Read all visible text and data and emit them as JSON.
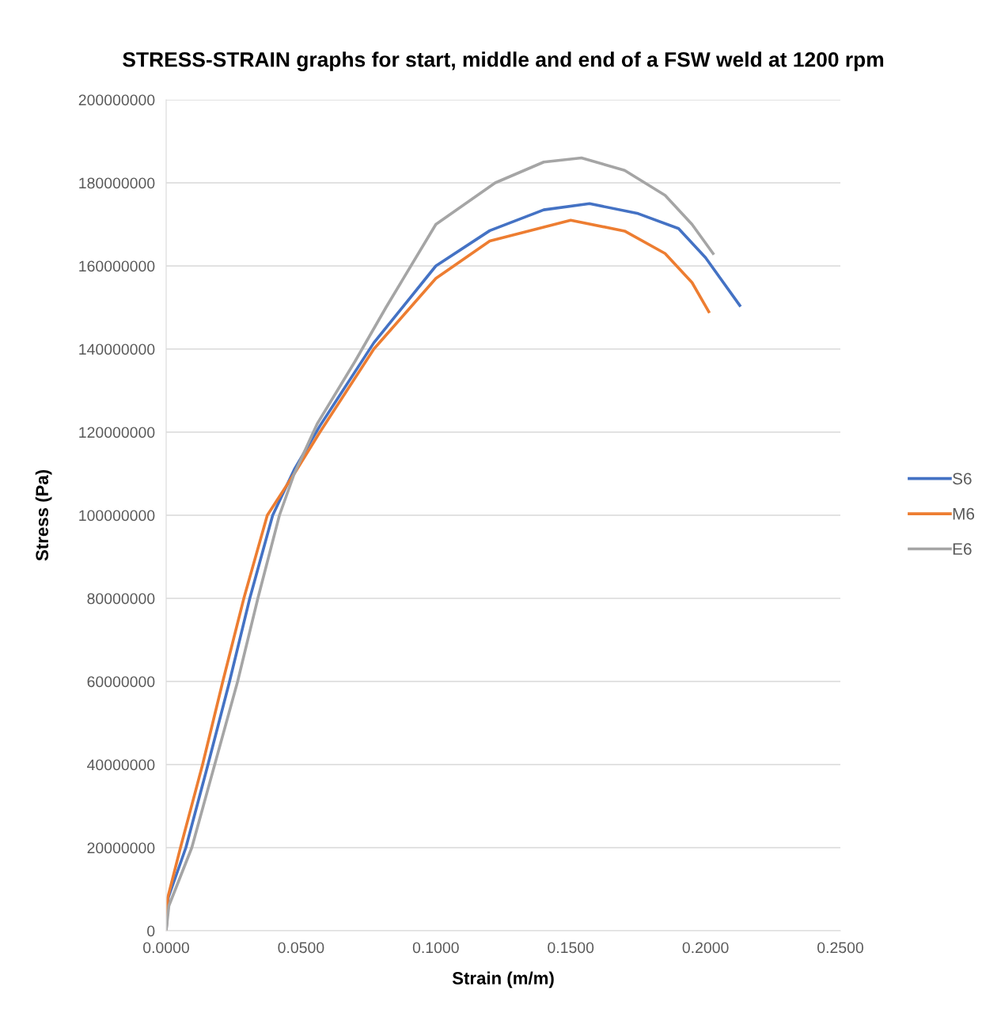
{
  "chart_data": {
    "type": "line",
    "title": "STRESS-STRAIN graphs for start, middle and end of a FSW weld at 1200 rpm",
    "xlabel": "Strain (m/m)",
    "ylabel": "Stress (Pa)",
    "xlim": [
      0,
      0.25
    ],
    "xticks": [
      {
        "value": 0,
        "label": "0.0000"
      },
      {
        "value": 0.05,
        "label": "0.0500"
      },
      {
        "value": 0.1,
        "label": "0.1000"
      },
      {
        "value": 0.15,
        "label": "0.1500"
      },
      {
        "value": 0.2,
        "label": "0.2000"
      },
      {
        "value": 0.25,
        "label": "0.2500"
      }
    ],
    "ylim": [
      0,
      200000000
    ],
    "yticks": [
      0,
      20000000,
      40000000,
      60000000,
      80000000,
      100000000,
      120000000,
      140000000,
      160000000,
      180000000,
      200000000
    ],
    "grid": "y",
    "legend": "right",
    "marker": "none",
    "line_style": "solid",
    "series": [
      {
        "name": "S6",
        "color": "#4472c4",
        "x": [
          0,
          0.0008,
          0.0073,
          0.0155,
          0.0235,
          0.031,
          0.0395,
          0.0475,
          0.057,
          0.077,
          0.1,
          0.12,
          0.14,
          0.157,
          0.175,
          0.19,
          0.2,
          0.2127
        ],
        "values": [
          0,
          8000000,
          20000000,
          40000000,
          60000000,
          80000000,
          100000000,
          111000000,
          121500000,
          141500000,
          160000000,
          168500000,
          173500000,
          175000000,
          172600000,
          169000000,
          162000000,
          150500000
        ]
      },
      {
        "name": "M6",
        "color": "#ed7d31",
        "x": [
          0,
          0.0006,
          0.0053,
          0.0135,
          0.021,
          0.0288,
          0.0375,
          0.0475,
          0.057,
          0.077,
          0.1,
          0.12,
          0.15,
          0.17,
          0.185,
          0.195,
          0.2012
        ],
        "values": [
          0,
          8000000,
          20000000,
          40000000,
          60000000,
          80000000,
          100000000,
          110000000,
          120000000,
          140000000,
          157000000,
          166000000,
          171000000,
          168400000,
          163000000,
          156000000,
          149000000
        ]
      },
      {
        "name": "E6",
        "color": "#a5a5a5",
        "x": [
          0,
          0.001,
          0.0095,
          0.018,
          0.0265,
          0.034,
          0.042,
          0.0475,
          0.056,
          0.07,
          0.0815,
          0.1,
          0.122,
          0.14,
          0.154,
          0.17,
          0.185,
          0.195,
          0.2028
        ],
        "values": [
          0,
          6000000,
          20000000,
          40000000,
          60000000,
          80000000,
          100000000,
          110000000,
          122000000,
          137000000,
          150000000,
          170000000,
          180000000,
          185000000,
          186000000,
          183000000,
          177000000,
          170000000,
          163000000
        ]
      }
    ]
  }
}
